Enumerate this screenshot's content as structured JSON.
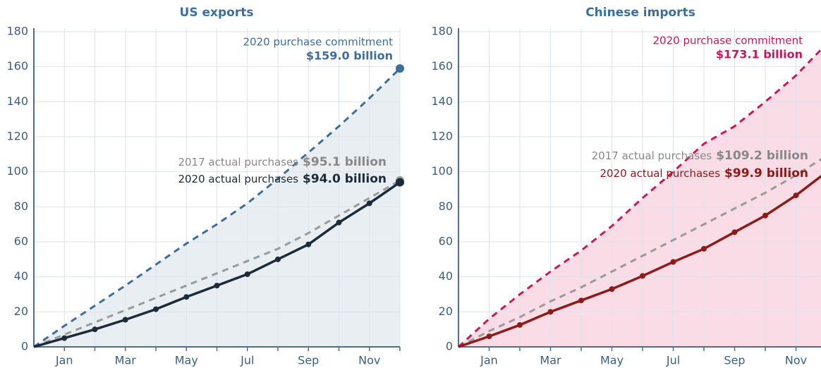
{
  "chart_data": [
    {
      "type": "line",
      "title": "US exports",
      "categories": [
        null,
        "Jan",
        null,
        "Mar",
        null,
        "May",
        null,
        "Jul",
        null,
        "Sep",
        null,
        "Nov",
        null
      ],
      "ylim": [
        0,
        180
      ],
      "yticks": [
        0,
        20,
        40,
        60,
        80,
        100,
        120,
        140,
        160,
        180
      ],
      "grid": true,
      "series": [
        {
          "name": "2020 purchase commitment",
          "color": "#3d6e9a",
          "area_color": "#e9eef3",
          "dashed": true,
          "markers": "last",
          "values": [
            0,
            12,
            23.5,
            35,
            47,
            59,
            70,
            82,
            96,
            111,
            126,
            142,
            159.0
          ],
          "value_labels": [
            null,
            null,
            null,
            null,
            null,
            null,
            null,
            null,
            null,
            null,
            null,
            null,
            "$159.0 billion"
          ]
        },
        {
          "name": "2017 actual purchases",
          "color": "#9a9a9a",
          "dashed": true,
          "markers": "last",
          "values": [
            0,
            7,
            14,
            21,
            28,
            35,
            42,
            49,
            56,
            65,
            75,
            85,
            95.1
          ],
          "value_labels": [
            null,
            null,
            null,
            null,
            null,
            null,
            null,
            null,
            null,
            null,
            null,
            null,
            "$95.1 billion"
          ]
        },
        {
          "name": "2020 actual purchases",
          "color": "#1c2b3a",
          "dashed": false,
          "markers": "all",
          "values": [
            0,
            5,
            10,
            15.5,
            21.5,
            28.5,
            35,
            41.5,
            50,
            58.5,
            71,
            82,
            94.0
          ],
          "value_labels": [
            null,
            null,
            null,
            null,
            null,
            null,
            null,
            null,
            null,
            null,
            null,
            null,
            "$94.0 billion"
          ]
        }
      ]
    },
    {
      "type": "line",
      "title": "Chinese imports",
      "categories": [
        null,
        "Jan",
        null,
        "Mar",
        null,
        "May",
        null,
        "Jul",
        null,
        "Sep",
        null,
        "Nov",
        null
      ],
      "ylim": [
        0,
        180
      ],
      "yticks": [
        0,
        20,
        40,
        60,
        80,
        100,
        120,
        140,
        160,
        180
      ],
      "grid": true,
      "series": [
        {
          "name": "2020 purchase commitment",
          "color": "#c8185a",
          "area_color": "#f9dce6",
          "dashed": true,
          "markers": "last",
          "values": [
            0,
            16,
            30,
            43,
            55,
            69,
            85,
            100,
            116,
            126,
            140,
            155,
            173.1
          ],
          "value_labels": [
            null,
            null,
            null,
            null,
            null,
            null,
            null,
            null,
            null,
            null,
            null,
            null,
            "$173.1 billion"
          ]
        },
        {
          "name": "2017 actual purchases",
          "color": "#9a9a9a",
          "dashed": true,
          "markers": "last",
          "values": [
            0,
            9,
            17,
            26,
            34,
            43,
            52,
            61,
            70,
            79,
            88,
            98,
            109.2
          ],
          "value_labels": [
            null,
            null,
            null,
            null,
            null,
            null,
            null,
            null,
            null,
            null,
            null,
            null,
            "$109.2 billion"
          ]
        },
        {
          "name": "2020 actual purchases",
          "color": "#8f1a1a",
          "dashed": false,
          "markers": "all",
          "values": [
            0,
            6,
            12.5,
            20,
            26.5,
            33,
            40.5,
            48.5,
            56,
            65.5,
            75,
            86.5,
            99.9
          ],
          "value_labels": [
            null,
            null,
            null,
            null,
            null,
            null,
            null,
            null,
            null,
            null,
            null,
            null,
            "$99.9 billion"
          ]
        }
      ]
    }
  ]
}
